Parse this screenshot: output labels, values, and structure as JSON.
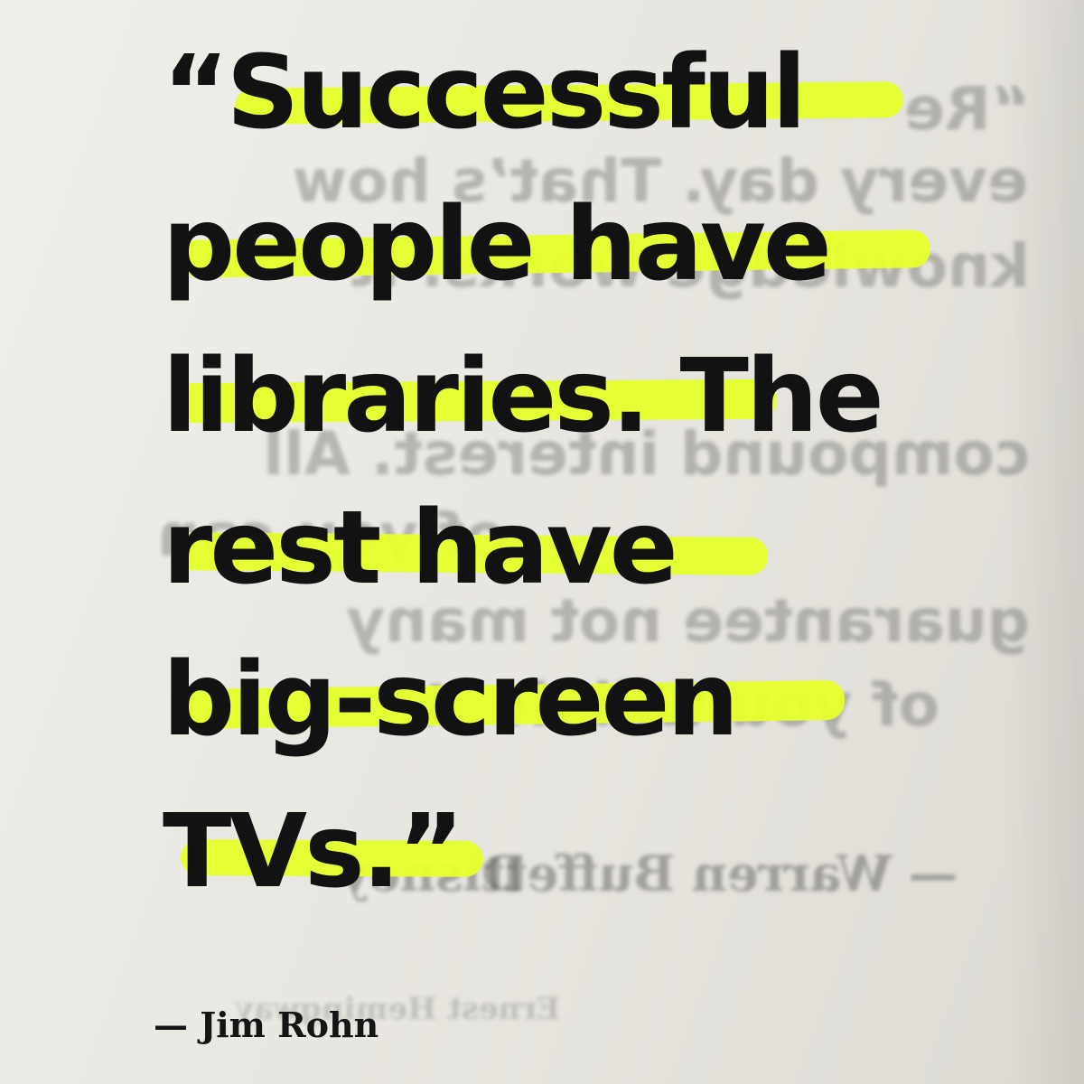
{
  "quote": {
    "lines": [
      "“Successful",
      "people have",
      "libraries. The",
      "rest have",
      "big-screen",
      "TVs.”"
    ],
    "highlight_color": "#e6ff2a"
  },
  "attribution": "— Jim Rohn",
  "bleed_through": {
    "lines": [
      "“Re",
      "every day. That’s how",
      "knowledge works. It",
      "compound interest. All",
      "of you can",
      "guarantee not many",
      "of you will do it."
    ],
    "attribution_left": "— Warren Buffett",
    "attribution_right": "Disney",
    "footer": "Ernest Hemingway"
  }
}
